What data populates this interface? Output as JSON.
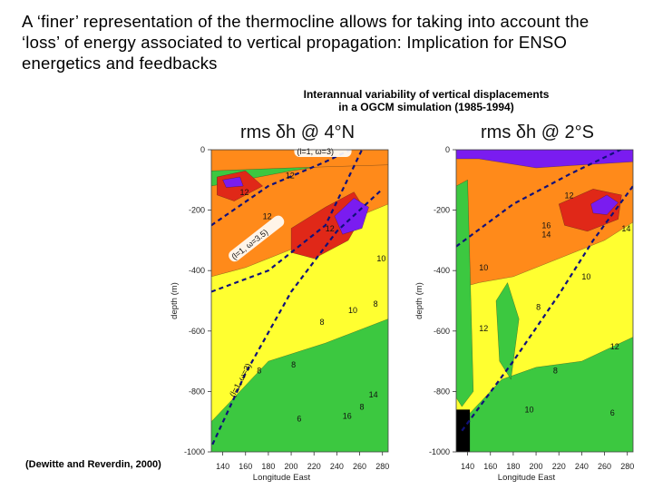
{
  "slide": {
    "title": "A ‘finer’ representation of the thermocline allows for taking into account the ‘loss’ of energy associated to vertical propagation: Implication for ENSO energetics and feedbacks",
    "caption_line1": "Interannual variability of vertical displacements",
    "caption_line2": "in a OGCM simulation (1985-1994)",
    "credit": "(Dewitte and Reverdin, 2000)"
  },
  "chart_data": [
    {
      "type": "heatmap",
      "title": "rms δh @ 4°N",
      "xlabel": "Longitude East",
      "ylabel": "depth (m)",
      "xlim": [
        130,
        285
      ],
      "ylim": [
        -1000,
        0
      ],
      "x_ticks": [
        "140",
        "160",
        "180",
        "200",
        "220",
        "240",
        "260",
        "280"
      ],
      "y_ticks": [
        "0",
        "-200",
        "-400",
        "-600",
        "-800",
        "-1000"
      ],
      "colors": {
        "low": "#3cc840",
        "mid": "#ffff30",
        "high": "#ff8a1a",
        "higher": "#e02818",
        "max": "#7a1cf0"
      },
      "ray_paths": [
        {
          "label": "(l=1,  ω=3)",
          "points": [
            [
              130,
              -250
            ],
            [
              180,
              -120
            ],
            [
              230,
              -40
            ],
            [
              285,
              60
            ]
          ]
        },
        {
          "label": "(l=1,  ω=3.5)",
          "points": [
            [
              130,
              -470
            ],
            [
              180,
              -400
            ],
            [
              230,
              -250
            ],
            [
              262,
              0
            ]
          ]
        },
        {
          "label": "(l=1,  ω=3)",
          "points": [
            [
              128,
              -1000
            ],
            [
              160,
              -740
            ],
            [
              200,
              -470
            ],
            [
              240,
              -270
            ],
            [
              280,
              -130
            ]
          ]
        }
      ],
      "annotations": [
        "12",
        "12",
        "12",
        "10",
        "8",
        "8",
        "8",
        "8",
        "10",
        "14",
        "16",
        "12",
        "8",
        "6"
      ]
    },
    {
      "type": "heatmap",
      "title": "rms δh @ 2°S",
      "xlabel": "Longitude East",
      "ylabel": "depth (m)",
      "xlim": [
        130,
        285
      ],
      "ylim": [
        -1000,
        0
      ],
      "x_ticks": [
        "140",
        "160",
        "180",
        "200",
        "220",
        "240",
        "260",
        "280"
      ],
      "y_ticks": [
        "0",
        "-200",
        "-400",
        "-600",
        "-800",
        "-1000"
      ],
      "colors": {
        "low": "#3cc840",
        "mid": "#ffff30",
        "high": "#ff8a1a",
        "higher": "#e02818",
        "max": "#7a1cf0"
      },
      "ray_paths": [
        {
          "label": "",
          "points": [
            [
              130,
              -320
            ],
            [
              180,
              -180
            ],
            [
              230,
              -80
            ],
            [
              285,
              20
            ]
          ]
        },
        {
          "label": "",
          "points": [
            [
              135,
              -930
            ],
            [
              180,
              -700
            ],
            [
              220,
              -480
            ],
            [
              250,
              -300
            ],
            [
              285,
              -120
            ]
          ]
        }
      ],
      "annotations": [
        "14",
        "16",
        "12",
        "8",
        "10",
        "8",
        "12",
        "6",
        "14",
        "10",
        "12",
        "10"
      ]
    }
  ]
}
